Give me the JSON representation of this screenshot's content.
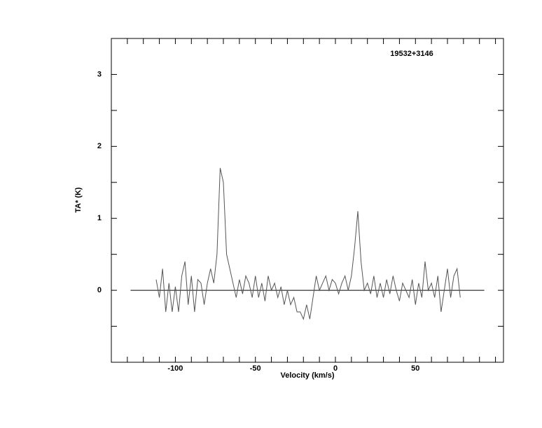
{
  "chart_data": {
    "type": "line",
    "annotation": "19532+3146",
    "x_label": "Velocity (km/s)",
    "y_label": "TA* (K)",
    "x": [
      -112,
      -110,
      -108,
      -106,
      -104,
      -102,
      -100,
      -98,
      -96,
      -94,
      -92,
      -90,
      -88,
      -86,
      -84,
      -82,
      -80,
      -78,
      -76,
      -74,
      -72,
      -70,
      -68,
      -66,
      -64,
      -62,
      -60,
      -58,
      -56,
      -54,
      -52,
      -50,
      -48,
      -46,
      -44,
      -42,
      -40,
      -38,
      -36,
      -34,
      -32,
      -30,
      -28,
      -26,
      -24,
      -22,
      -20,
      -18,
      -16,
      -14,
      -12,
      -10,
      -8,
      -6,
      -4,
      -2,
      0,
      2,
      4,
      6,
      8,
      10,
      12,
      14,
      16,
      18,
      20,
      22,
      24,
      26,
      28,
      30,
      32,
      34,
      36,
      38,
      40,
      42,
      44,
      46,
      48,
      50,
      52,
      54,
      56,
      58,
      60,
      62,
      64,
      66,
      68,
      70,
      72,
      74,
      76,
      78
    ],
    "series": [
      {
        "color": "#555555",
        "values": [
          0.15,
          -0.1,
          0.3,
          -0.3,
          0.1,
          -0.3,
          0.05,
          -0.3,
          0.2,
          0.4,
          -0.2,
          0.2,
          -0.3,
          0.15,
          0.1,
          -0.2,
          0.1,
          0.3,
          0.1,
          0.5,
          1.7,
          1.5,
          0.5,
          0.3,
          0.1,
          -0.1,
          0.15,
          -0.05,
          0.2,
          0.1,
          -0.1,
          0.2,
          -0.1,
          0.1,
          -0.15,
          0.2,
          0.0,
          0.1,
          -0.1,
          0.05,
          -0.2,
          0.0,
          -0.2,
          -0.1,
          -0.3,
          -0.3,
          -0.4,
          -0.2,
          -0.4,
          -0.1,
          0.2,
          0.0,
          0.1,
          0.2,
          0.0,
          0.15,
          0.1,
          -0.05,
          0.1,
          0.2,
          0.0,
          0.2,
          0.6,
          1.1,
          0.4,
          0.0,
          0.1,
          -0.05,
          0.2,
          -0.1,
          0.1,
          -0.1,
          0.15,
          -0.05,
          0.2,
          0.0,
          -0.15,
          0.1,
          0.0,
          -0.1,
          0.15,
          -0.2,
          0.1,
          -0.1,
          0.4,
          0.0,
          0.1,
          -0.1,
          0.2,
          -0.3,
          0.0,
          0.3,
          -0.1,
          0.2,
          0.3,
          -0.1
        ]
      }
    ],
    "xlim": [
      -140,
      105
    ],
    "ylim": [
      -1,
      3.5
    ],
    "xticks": [
      -100,
      -50,
      0,
      50
    ],
    "yticks": [
      0,
      1,
      2,
      3
    ],
    "minor_xticks": [
      -130,
      -120,
      -110,
      -90,
      -80,
      -70,
      -60,
      -40,
      -30,
      -20,
      -10,
      10,
      20,
      30,
      40,
      60,
      70,
      80,
      90,
      100
    ],
    "minor_yticks": [
      -0.5,
      0.5,
      1.5,
      2.5
    ],
    "baseline_value": 0,
    "baseline_range": [
      -128,
      93
    ]
  }
}
